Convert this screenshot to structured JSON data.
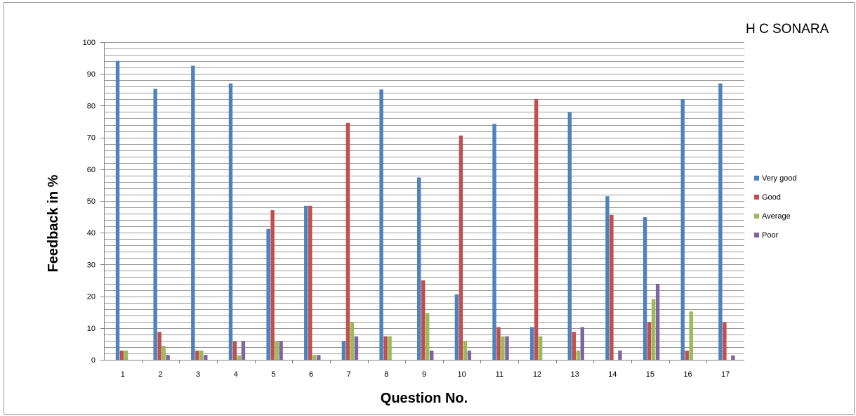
{
  "chart_data": {
    "type": "bar",
    "title": "H C SONARA",
    "xlabel": "Question No.",
    "ylabel": "Feedback in %",
    "ylim": [
      0,
      100
    ],
    "y_ticks": [
      "0",
      "10",
      "20",
      "30",
      "40",
      "50",
      "60",
      "70",
      "80",
      "90",
      "100"
    ],
    "grid": true,
    "legend_position": "right",
    "categories": [
      "1",
      "2",
      "3",
      "4",
      "5",
      "6",
      "7",
      "8",
      "9",
      "10",
      "11",
      "12",
      "13",
      "14",
      "15",
      "16",
      "17"
    ],
    "series": [
      {
        "name": "Very good",
        "color": "#4f81bd",
        "values": [
          94.1,
          85.3,
          92.6,
          87.0,
          41.2,
          48.5,
          5.9,
          85.1,
          57.4,
          20.6,
          74.3,
          10.3,
          77.9,
          51.5,
          44.9,
          82.1,
          87.0
        ]
      },
      {
        "name": "Good",
        "color": "#c0504d",
        "values": [
          2.9,
          8.8,
          2.9,
          5.8,
          47.1,
          48.5,
          74.6,
          7.4,
          25.0,
          70.6,
          10.3,
          82.1,
          8.8,
          45.6,
          11.8,
          2.9,
          11.8
        ]
      },
      {
        "name": "Average",
        "color": "#9bbb59",
        "values": [
          2.9,
          4.4,
          2.9,
          1.4,
          5.9,
          1.5,
          11.8,
          7.4,
          14.7,
          5.9,
          7.4,
          7.4,
          2.9,
          0,
          19.1,
          15.2,
          0
        ]
      },
      {
        "name": "Poor",
        "color": "#8064a2",
        "values": [
          0,
          1.5,
          1.5,
          5.9,
          5.9,
          1.5,
          7.4,
          0,
          2.9,
          2.9,
          7.4,
          0,
          10.3,
          2.9,
          23.9,
          0,
          1.4
        ]
      }
    ]
  }
}
